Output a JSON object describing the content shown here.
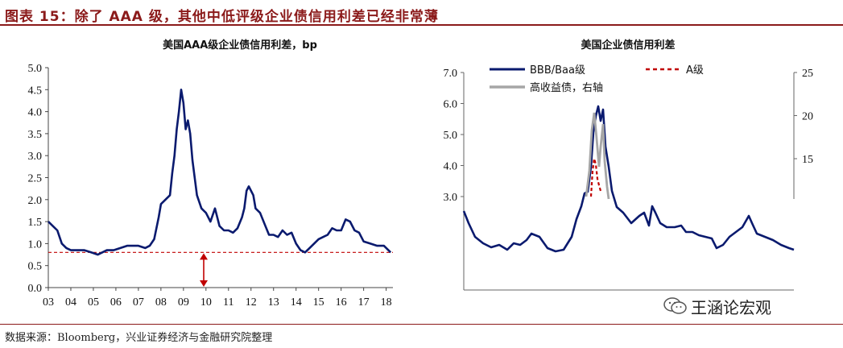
{
  "figure_title": "图表 15：除了 AAA 级，其他中低评级企业债信用利差已经非常薄",
  "source": "数据来源：Bloomberg，兴业证券经济与金融研究院整理",
  "watermark": "王涵论宏观",
  "chart_data": [
    {
      "type": "line",
      "title": "美国AAA级企业债信用利差，bp",
      "x_ticks": [
        "03",
        "04",
        "05",
        "06",
        "07",
        "08",
        "09",
        "10",
        "11",
        "12",
        "13",
        "14",
        "15",
        "16",
        "17",
        "18"
      ],
      "y_ticks": [
        "0.0",
        "0.5",
        "1.0",
        "1.5",
        "2.0",
        "2.5",
        "3.0",
        "3.5",
        "4.0",
        "4.5",
        "5.0"
      ],
      "xlim": [
        2003,
        2018.3
      ],
      "ylim": [
        0,
        5
      ],
      "series": [
        {
          "color": "#0a1a6e",
          "x": [
            2003.0,
            2003.2,
            2003.4,
            2003.6,
            2003.8,
            2004.0,
            2004.3,
            2004.6,
            2004.9,
            2005.2,
            2005.4,
            2005.6,
            2005.9,
            2006.2,
            2006.5,
            2006.8,
            2007.0,
            2007.3,
            2007.5,
            2007.7,
            2007.9,
            2008.0,
            2008.2,
            2008.4,
            2008.5,
            2008.6,
            2008.7,
            2008.8,
            2008.9,
            2009.0,
            2009.1,
            2009.2,
            2009.3,
            2009.4,
            2009.5,
            2009.6,
            2009.8,
            2010.0,
            2010.2,
            2010.4,
            2010.6,
            2010.8,
            2011.0,
            2011.2,
            2011.4,
            2011.6,
            2011.7,
            2011.8,
            2011.9,
            2012.0,
            2012.1,
            2012.2,
            2012.4,
            2012.6,
            2012.8,
            2013.0,
            2013.2,
            2013.4,
            2013.6,
            2013.8,
            2014.0,
            2014.2,
            2014.4,
            2014.6,
            2014.8,
            2015.0,
            2015.2,
            2015.4,
            2015.6,
            2015.8,
            2016.0,
            2016.2,
            2016.4,
            2016.6,
            2016.8,
            2017.0,
            2017.3,
            2017.6,
            2017.9,
            2018.1,
            2018.2
          ],
          "y": [
            1.5,
            1.4,
            1.3,
            1.0,
            0.9,
            0.85,
            0.85,
            0.85,
            0.8,
            0.75,
            0.8,
            0.85,
            0.85,
            0.9,
            0.95,
            0.95,
            0.95,
            0.9,
            0.95,
            1.1,
            1.6,
            1.9,
            2.0,
            2.1,
            2.6,
            3.0,
            3.6,
            4.0,
            4.5,
            4.2,
            3.6,
            3.8,
            3.5,
            2.9,
            2.5,
            2.1,
            1.8,
            1.7,
            1.5,
            1.8,
            1.4,
            1.3,
            1.3,
            1.25,
            1.35,
            1.6,
            1.8,
            2.2,
            2.3,
            2.2,
            2.1,
            1.8,
            1.7,
            1.45,
            1.2,
            1.2,
            1.15,
            1.3,
            1.2,
            1.25,
            1.0,
            0.85,
            0.8,
            0.9,
            1.0,
            1.1,
            1.15,
            1.2,
            1.35,
            1.3,
            1.3,
            1.55,
            1.5,
            1.3,
            1.25,
            1.05,
            1.0,
            0.95,
            0.95,
            0.85,
            0.8
          ]
        }
      ],
      "reference_line": {
        "value": 0.8,
        "color": "#c00000"
      },
      "annotation_arrow": {
        "x": 2009.9,
        "from": 0.0,
        "to": 0.8,
        "color": "#c00000"
      }
    },
    {
      "type": "line",
      "title": "美国企业债信用利差",
      "y_ticks_left": [
        "3.0",
        "4.0",
        "5.0",
        "6.0",
        "7.0"
      ],
      "y_ticks_right": [
        "15",
        "20",
        "25"
      ],
      "legend": [
        "BBB/Baa级",
        "A级",
        "高收益债，右轴"
      ],
      "series": [
        {
          "name": "BBB/Baa级",
          "color": "#0a1a6e"
        },
        {
          "name": "A级",
          "color": "#c00000",
          "style": "dashed"
        },
        {
          "name": "高收益债，右轴",
          "color": "#a6a6a6"
        }
      ]
    }
  ]
}
